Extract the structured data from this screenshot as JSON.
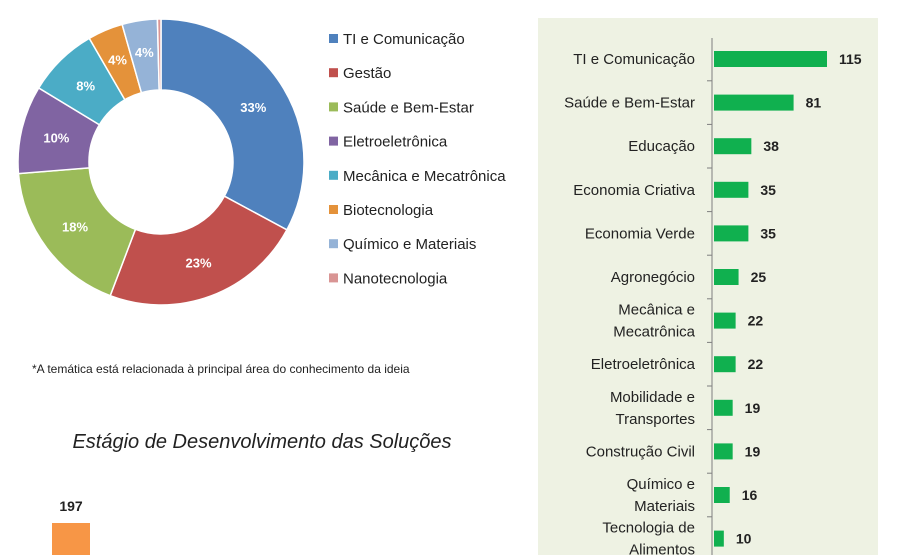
{
  "colors": {
    "background": "#ffffff",
    "panel": "#eef2e3",
    "bar": "#10b04f",
    "bar_border": "#0a8a3a",
    "axis": "#7f7f7f",
    "stage_bar": "#f79646"
  },
  "chart_data": [
    {
      "type": "pie",
      "variant": "donut",
      "legend_position": "right",
      "categories": [
        "TI e Comunicação",
        "Gestão",
        "Saúde e Bem-Estar",
        "Eletroeletrônica",
        "Mecânica e Mecatrônica",
        "Biotecnologia",
        "Químico e Materiais",
        "Nanotecnologia"
      ],
      "values": [
        33,
        23,
        18,
        10,
        8,
        4,
        4,
        0.4
      ],
      "labels": [
        "33%",
        "23%",
        "18%",
        "10%",
        "8%",
        "4%",
        "4%",
        ""
      ],
      "colors": [
        "#4f81bd",
        "#c0504d",
        "#9bbb59",
        "#8064a2",
        "#4bacc6",
        "#e4923a",
        "#95b3d7",
        "#d99594"
      ]
    },
    {
      "type": "bar",
      "orientation": "horizontal",
      "categories": [
        "TI e Comunicação",
        "Saúde e Bem-Estar",
        "Educação",
        "Economia Criativa",
        "Economia Verde",
        "Agronegócio",
        "Mecânica e Mecatrônica",
        "Eletroeletrônica",
        "Mobilidade e Transportes",
        "Construção Civil",
        "Químico e Materiais",
        "Tecnologia de Alimentos"
      ],
      "values": [
        115,
        81,
        38,
        35,
        35,
        25,
        22,
        22,
        19,
        19,
        16,
        10
      ],
      "xlim": [
        0,
        115
      ],
      "grid": false
    },
    {
      "type": "bar",
      "title": "Estágio de Desenvolvimento das Soluções",
      "categories": [
        ""
      ],
      "values": [
        197
      ],
      "data_labels": [
        "197"
      ]
    }
  ],
  "footnote": "*A temática está relacionada à principal área do conhecimento da ideia",
  "stage_chart_title": "Estágio de Desenvolvimento das Soluções"
}
